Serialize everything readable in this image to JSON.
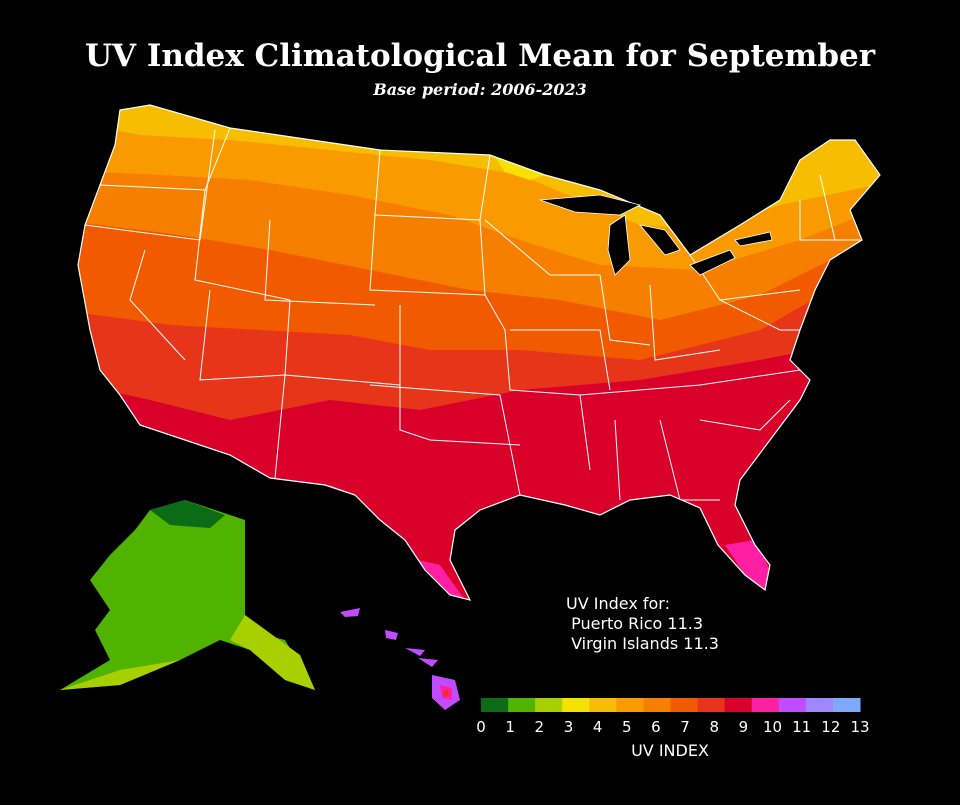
{
  "title": "UV Index Climatological Mean for September",
  "subtitle": "Base period: 2006-2023",
  "note": {
    "heading": "UV Index for:",
    "lines": [
      " Puerto Rico 11.3",
      " Virgin Islands 11.3"
    ]
  },
  "colorbar": {
    "title": "UV INDEX",
    "ticks": [
      "0",
      "1",
      "2",
      "3",
      "4",
      "5",
      "6",
      "7",
      "8",
      "9",
      "10",
      "11",
      "12",
      "13"
    ],
    "colors": [
      "#0b6b16",
      "#4fb300",
      "#a8cf00",
      "#f5e200",
      "#f7bd00",
      "#f99a00",
      "#f77f00",
      "#f25a00",
      "#e63519",
      "#d9002a",
      "#ff1fa3",
      "#c14bff",
      "#9f87ff",
      "#7fa9ff"
    ]
  }
}
